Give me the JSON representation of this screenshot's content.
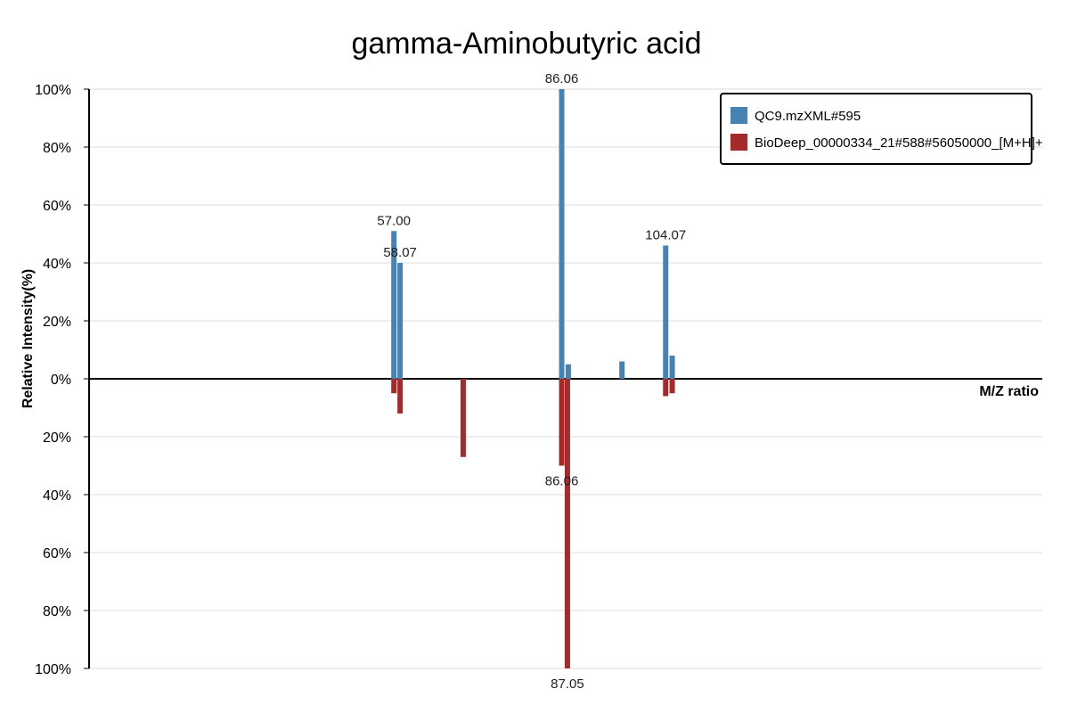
{
  "chart_data": {
    "type": "bar",
    "title": "gamma-Aminobutyric acid",
    "xlabel": "M/Z ratio",
    "ylabel": "Relative Intensity(%)",
    "ylim": [
      -100,
      100
    ],
    "y_ticks": [
      "100%",
      "80%",
      "60%",
      "40%",
      "20%",
      "0%",
      "20%",
      "40%",
      "60%",
      "80%",
      "100%"
    ],
    "grid": true,
    "legend_position": "top-right",
    "series": [
      {
        "name": "QC9.mzXML#595",
        "color": "#4682b4",
        "direction": "up",
        "peaks": [
          {
            "mz": 57.0,
            "intensity": 51,
            "label": "57.00"
          },
          {
            "mz": 58.07,
            "intensity": 40,
            "label": "58.07"
          },
          {
            "mz": 86.06,
            "intensity": 100,
            "label": "86.06"
          },
          {
            "mz": 87.2,
            "intensity": 5,
            "label": ""
          },
          {
            "mz": 96.5,
            "intensity": 6,
            "label": ""
          },
          {
            "mz": 104.07,
            "intensity": 46,
            "label": "104.07"
          },
          {
            "mz": 105.2,
            "intensity": 8,
            "label": ""
          }
        ]
      },
      {
        "name": "BioDeep_00000334_21#588#56050000_[M+H]+",
        "color": "#a52a2a",
        "direction": "down",
        "peaks": [
          {
            "mz": 57.0,
            "intensity": 5,
            "label": ""
          },
          {
            "mz": 58.07,
            "intensity": 12,
            "label": ""
          },
          {
            "mz": 69.0,
            "intensity": 27,
            "label": ""
          },
          {
            "mz": 86.06,
            "intensity": 30,
            "label": "86.06"
          },
          {
            "mz": 87.05,
            "intensity": 100,
            "label": "87.05"
          },
          {
            "mz": 104.07,
            "intensity": 6,
            "label": ""
          },
          {
            "mz": 105.2,
            "intensity": 5,
            "label": ""
          }
        ]
      }
    ]
  }
}
